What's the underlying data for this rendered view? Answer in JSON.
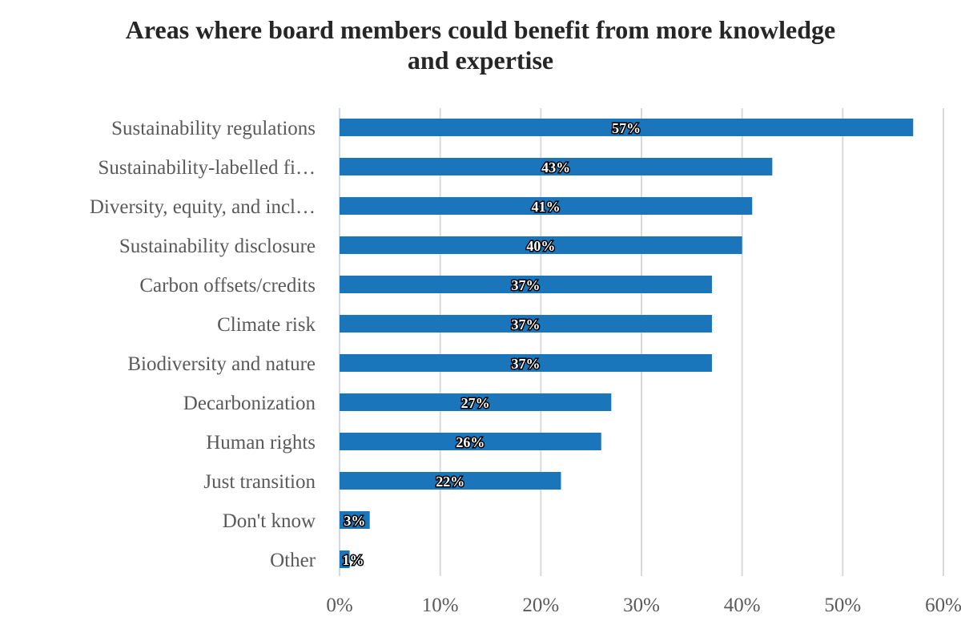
{
  "chart_data": {
    "type": "bar",
    "orientation": "horizontal",
    "title": "Areas where board members could benefit from more knowledge and expertise",
    "title_lines": [
      "Areas where board members could benefit from more knowledge",
      "and expertise"
    ],
    "categories": [
      "Sustainability regulations",
      "Sustainability-labelled fi…",
      "Diversity, equity, and incl…",
      "Sustainability disclosure",
      "Carbon offsets/credits",
      "Climate risk",
      "Biodiversity and nature",
      "Decarbonization",
      "Human rights",
      "Just transition",
      "Don't know",
      "Other"
    ],
    "values": [
      57,
      43,
      41,
      40,
      37,
      37,
      37,
      27,
      26,
      22,
      3,
      1
    ],
    "data_labels": [
      "57%",
      "43%",
      "41%",
      "40%",
      "37%",
      "37%",
      "37%",
      "27%",
      "26%",
      "22%",
      "3%",
      "1%"
    ],
    "xlim": [
      0,
      60
    ],
    "x_ticks": [
      "0%",
      "10%",
      "20%",
      "30%",
      "40%",
      "50%",
      "60%"
    ],
    "grid": "vertical",
    "legend": "none",
    "colors": {
      "bar": "#1b75bb",
      "grid": "#d9d9d9",
      "text": "#595959"
    }
  }
}
